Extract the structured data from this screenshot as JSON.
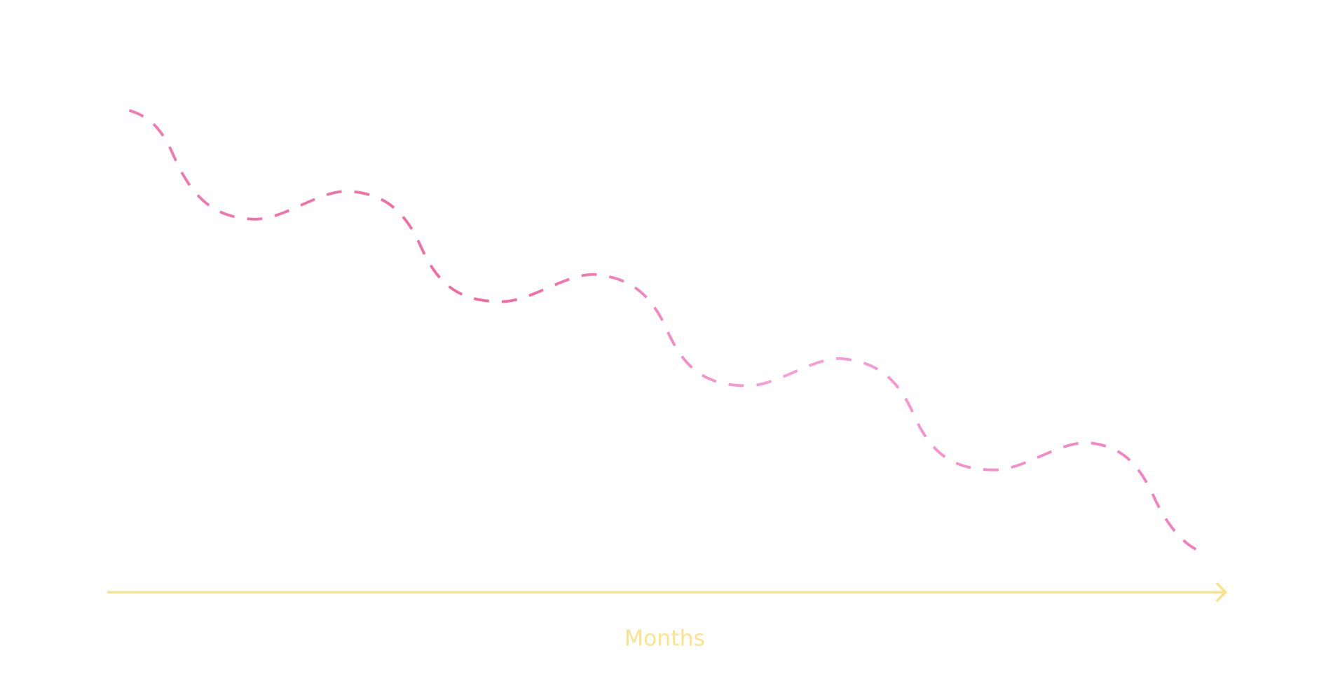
{
  "axis_label": "Months"
}
